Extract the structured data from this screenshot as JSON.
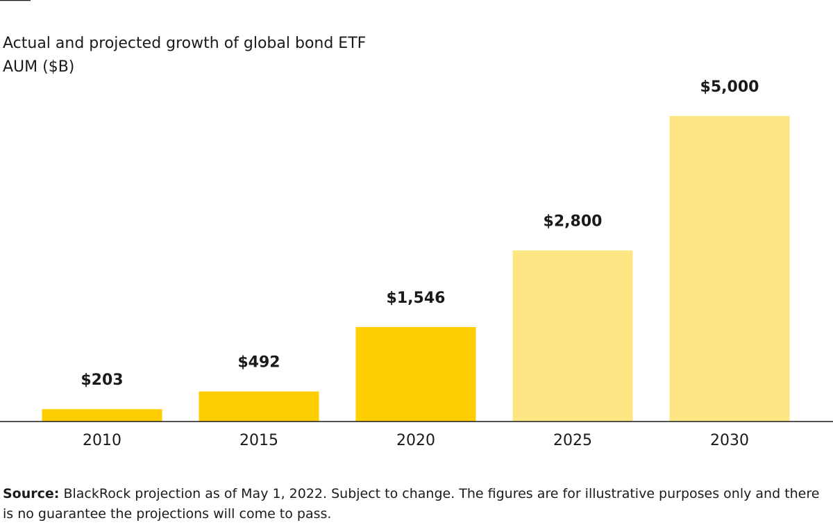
{
  "chart_data": {
    "type": "bar",
    "title": "Actual and projected growth of global bond ETF AUM ($B)",
    "categories": [
      "2010",
      "2015",
      "2020",
      "2025",
      "2030"
    ],
    "values": [
      203,
      492,
      1546,
      2800,
      5000
    ],
    "value_labels": [
      "$203",
      "$492",
      "$1,546",
      "$2,800",
      "$5,000"
    ],
    "colors": [
      "#FFCE00",
      "#FFCE00",
      "#FFCE00",
      "#FEE584",
      "#FEE584"
    ],
    "source_label": "Source:",
    "source_text": "BlackRock projection as of May 1, 2022. Subject to change. The figures are for illustrative purposes only and there is no guarantee the projections will come to pass."
  }
}
